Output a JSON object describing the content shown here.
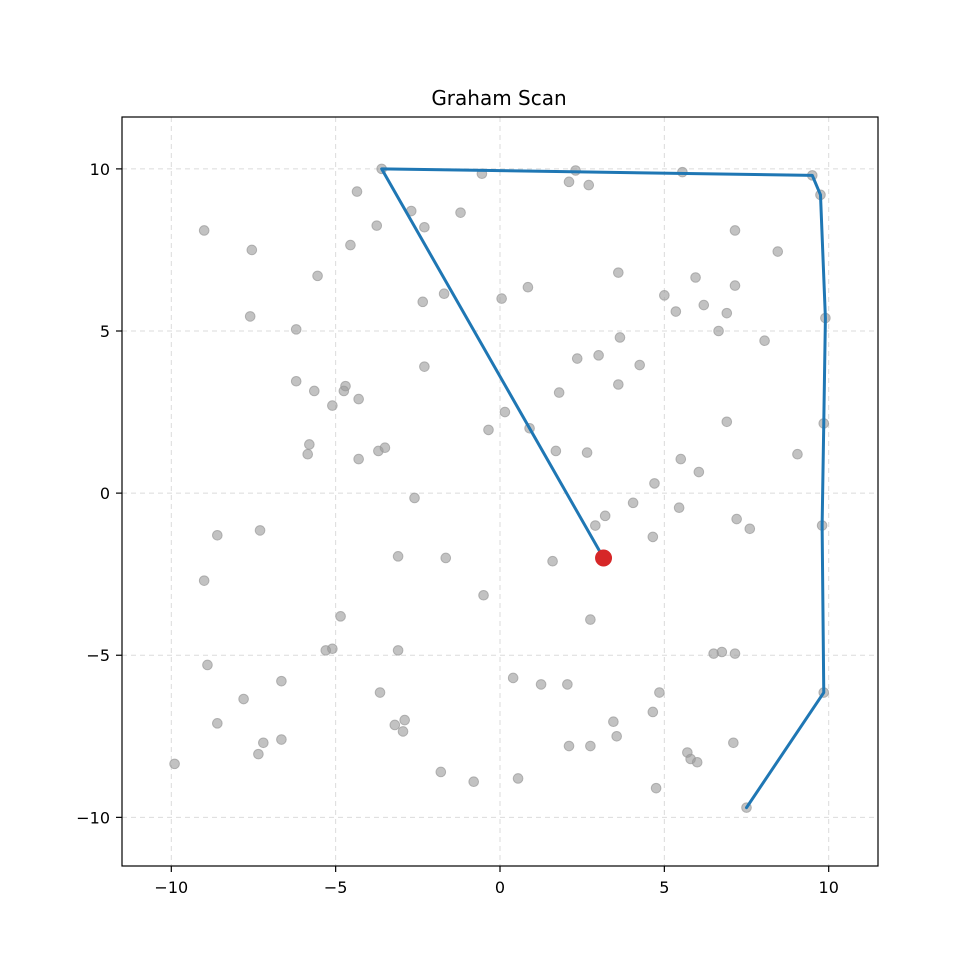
{
  "chart_data": {
    "type": "scatter",
    "title": "Graham Scan",
    "xlabel": "",
    "ylabel": "",
    "xlim": [
      -11.5,
      11.5
    ],
    "ylim": [
      -11.5,
      11.6
    ],
    "x_ticks": [
      -10,
      -5,
      0,
      5,
      10
    ],
    "x_tick_labels": [
      "−10",
      "−5",
      "0",
      "5",
      "10"
    ],
    "y_ticks": [
      -10,
      -5,
      0,
      5,
      10
    ],
    "y_tick_labels": [
      "−10",
      "−5",
      "0",
      "5",
      "10"
    ],
    "grid": true,
    "colors": {
      "points": "#999999",
      "hull": "#1f77b4",
      "start": "#d62728",
      "grid": "#cccccc"
    },
    "points": [
      [
        -9.9,
        -8.35
      ],
      [
        -9.0,
        8.1
      ],
      [
        -9.0,
        -2.7
      ],
      [
        -8.9,
        -5.3
      ],
      [
        -8.6,
        -1.3
      ],
      [
        -8.6,
        -7.1
      ],
      [
        -7.8,
        -6.35
      ],
      [
        -7.55,
        7.5
      ],
      [
        -7.6,
        5.45
      ],
      [
        -7.3,
        -1.15
      ],
      [
        -7.2,
        -7.7
      ],
      [
        -7.35,
        -8.05
      ],
      [
        -6.65,
        -5.8
      ],
      [
        -6.65,
        -7.6
      ],
      [
        -6.2,
        5.05
      ],
      [
        -6.2,
        3.45
      ],
      [
        -5.8,
        1.5
      ],
      [
        -5.85,
        1.2
      ],
      [
        -5.55,
        6.7
      ],
      [
        -5.65,
        3.15
      ],
      [
        -5.3,
        -4.85
      ],
      [
        -5.1,
        -4.8
      ],
      [
        -5.1,
        2.7
      ],
      [
        -4.85,
        -3.8
      ],
      [
        -4.75,
        3.15
      ],
      [
        -4.7,
        3.3
      ],
      [
        -4.55,
        7.65
      ],
      [
        -4.35,
        9.3
      ],
      [
        -4.3,
        2.9
      ],
      [
        -4.3,
        1.05
      ],
      [
        -3.75,
        8.25
      ],
      [
        -3.7,
        1.3
      ],
      [
        -3.65,
        -6.15
      ],
      [
        -3.5,
        1.4
      ],
      [
        -3.6,
        10.0
      ],
      [
        -3.1,
        -1.95
      ],
      [
        -3.1,
        -4.85
      ],
      [
        -3.2,
        -7.15
      ],
      [
        -2.9,
        -7.0
      ],
      [
        -2.95,
        -7.35
      ],
      [
        -2.7,
        8.7
      ],
      [
        -2.6,
        -0.15
      ],
      [
        -2.35,
        5.9
      ],
      [
        -2.3,
        8.2
      ],
      [
        -2.3,
        3.9
      ],
      [
        -1.8,
        -8.6
      ],
      [
        -1.7,
        6.15
      ],
      [
        -1.65,
        -2.0
      ],
      [
        -1.2,
        8.65
      ],
      [
        -0.8,
        -8.9
      ],
      [
        -0.55,
        9.85
      ],
      [
        -0.5,
        -3.15
      ],
      [
        -0.35,
        1.95
      ],
      [
        0.05,
        6.0
      ],
      [
        0.15,
        2.5
      ],
      [
        0.4,
        -5.7
      ],
      [
        0.55,
        -8.8
      ],
      [
        0.85,
        6.35
      ],
      [
        0.9,
        2.0
      ],
      [
        1.25,
        -5.9
      ],
      [
        1.6,
        -2.1
      ],
      [
        1.7,
        1.3
      ],
      [
        1.8,
        3.1
      ],
      [
        2.05,
        -5.9
      ],
      [
        2.1,
        9.6
      ],
      [
        2.1,
        -7.8
      ],
      [
        2.35,
        4.15
      ],
      [
        2.3,
        9.95
      ],
      [
        2.65,
        1.25
      ],
      [
        2.7,
        9.5
      ],
      [
        2.75,
        -7.8
      ],
      [
        2.75,
        -3.9
      ],
      [
        2.9,
        -1.0
      ],
      [
        3.0,
        4.25
      ],
      [
        3.2,
        -0.7
      ],
      [
        3.45,
        -7.05
      ],
      [
        3.55,
        -7.5
      ],
      [
        3.6,
        6.8
      ],
      [
        3.6,
        3.35
      ],
      [
        3.65,
        4.8
      ],
      [
        4.05,
        -0.3
      ],
      [
        4.25,
        3.95
      ],
      [
        4.65,
        -6.75
      ],
      [
        4.65,
        -1.35
      ],
      [
        4.7,
        0.3
      ],
      [
        4.75,
        -9.1
      ],
      [
        4.85,
        -6.15
      ],
      [
        5.0,
        6.1
      ],
      [
        5.35,
        5.6
      ],
      [
        5.45,
        -0.45
      ],
      [
        5.5,
        1.05
      ],
      [
        5.55,
        9.9
      ],
      [
        5.7,
        -8.0
      ],
      [
        5.8,
        -8.2
      ],
      [
        5.95,
        6.65
      ],
      [
        6.0,
        -8.3
      ],
      [
        6.05,
        0.65
      ],
      [
        6.2,
        5.8
      ],
      [
        6.5,
        -4.95
      ],
      [
        6.65,
        5.0
      ],
      [
        6.75,
        -4.9
      ],
      [
        6.9,
        5.55
      ],
      [
        6.9,
        2.2
      ],
      [
        7.1,
        -7.7
      ],
      [
        7.15,
        8.1
      ],
      [
        7.15,
        6.4
      ],
      [
        7.15,
        -4.95
      ],
      [
        7.2,
        -0.8
      ],
      [
        7.6,
        -1.1
      ],
      [
        8.05,
        4.7
      ],
      [
        8.45,
        7.45
      ],
      [
        9.05,
        1.2
      ],
      [
        9.5,
        9.8
      ],
      [
        9.75,
        9.2
      ],
      [
        9.8,
        -1.0
      ],
      [
        9.85,
        -6.15
      ],
      [
        9.85,
        2.15
      ],
      [
        9.9,
        5.4
      ],
      [
        7.5,
        -9.7
      ]
    ],
    "hull": [
      [
        3.15,
        -2.0
      ],
      [
        -3.6,
        10.0
      ],
      [
        9.5,
        9.8
      ],
      [
        9.75,
        9.2
      ],
      [
        9.9,
        5.4
      ],
      [
        9.85,
        2.15
      ],
      [
        9.8,
        -1.0
      ],
      [
        9.85,
        -6.15
      ],
      [
        7.5,
        -9.7
      ]
    ],
    "start_point": [
      3.15,
      -2.0
    ]
  }
}
